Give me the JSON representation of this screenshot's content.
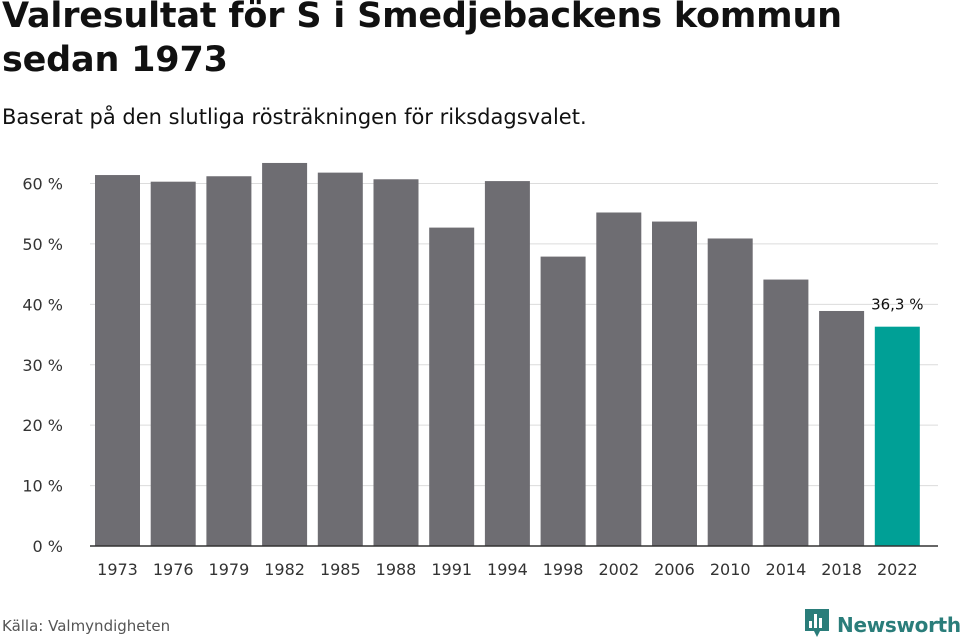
{
  "header": {
    "title": "Valresultat för S i Smedjebackens kommun sedan 1973",
    "subtitle": "Baserat på den slutliga rösträkningen för riksdagsvalet."
  },
  "footer": {
    "source": "Källa: Valmyndigheten",
    "brand": "Newsworthy"
  },
  "colors": {
    "bar": "#6e6d72",
    "highlight": "#00a096",
    "grid": "#dcdcdc",
    "axis": "#333333",
    "brand": "#2a7d7a"
  },
  "icons": {
    "logo": "newsworthy-logo-icon"
  },
  "chart_data": {
    "type": "bar",
    "categories": [
      "1973",
      "1976",
      "1979",
      "1982",
      "1985",
      "1988",
      "1991",
      "1994",
      "1998",
      "2002",
      "2006",
      "2010",
      "2014",
      "2018",
      "2022"
    ],
    "values": [
      61.4,
      60.3,
      61.2,
      63.4,
      61.8,
      60.7,
      52.7,
      60.4,
      47.9,
      55.2,
      53.7,
      50.9,
      44.1,
      38.9,
      36.3
    ],
    "highlight_index": 14,
    "data_labels": [
      {
        "index": 14,
        "text": "36,3 %"
      }
    ],
    "title": "Valresultat för S i Smedjebackens kommun sedan 1973",
    "subtitle": "Baserat på den slutliga rösträkningen för riksdagsvalet.",
    "xlabel": "",
    "ylabel": "",
    "ylim": [
      0,
      65
    ],
    "yticks": [
      0,
      10,
      20,
      30,
      40,
      50,
      60
    ],
    "ytick_labels": [
      "0 %",
      "10 %",
      "20 %",
      "30 %",
      "40 %",
      "50 %",
      "60 %"
    ],
    "grid": true,
    "legend": "none"
  }
}
